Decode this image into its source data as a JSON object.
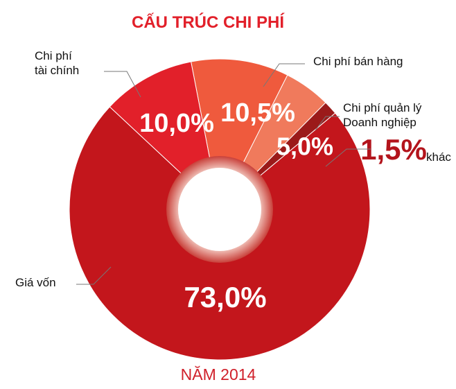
{
  "chart_data": {
    "type": "donut",
    "title": "CẤU TRÚC CHI PHÍ",
    "subtitle": "NĂM 2014",
    "categories": [
      "Chi phí bán hàng",
      "Chi phí quản lý\nDoanh nghiệp",
      "khác",
      "Giá vốn",
      "Chi phí\ntài chính"
    ],
    "values": [
      10.5,
      5.0,
      1.5,
      73.0,
      10.0
    ],
    "value_labels": [
      "10,5%",
      "5,0%",
      "1,5%",
      "73,0%",
      "10,0%"
    ],
    "colors": [
      "#ef5a3d",
      "#f07a5c",
      "#9b1a1a",
      "#c3161c",
      "#e2202a"
    ]
  }
}
